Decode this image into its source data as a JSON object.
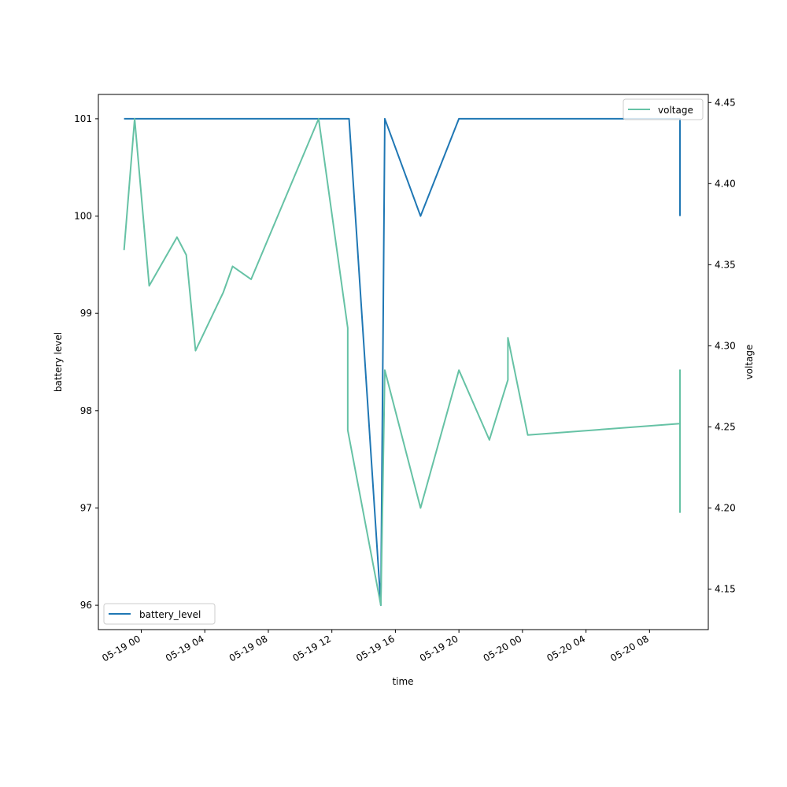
{
  "chart_data": {
    "type": "line",
    "title": "",
    "xlabel": "time",
    "ylabel": "battery level",
    "ylabel_right": "voltage",
    "x_tick_labels": [
      "05-19 00",
      "05-19 04",
      "05-19 08",
      "05-19 12",
      "05-19 16",
      "05-19 20",
      "05-20 00",
      "05-20 04",
      "05-20 08"
    ],
    "x_tick_hours": [
      0,
      4,
      8,
      12,
      16,
      20,
      24,
      28,
      32
    ],
    "xlim_hours": [
      -2.7,
      35.7
    ],
    "y_left_ticks": [
      96,
      97,
      98,
      99,
      100,
      101
    ],
    "y_left_tick_labels": [
      "96",
      "97",
      "98",
      "99",
      "100",
      "101"
    ],
    "ylim_left": [
      95.75,
      101.25
    ],
    "y_right_ticks": [
      4.15,
      4.2,
      4.25,
      4.3,
      4.35,
      4.4,
      4.45
    ],
    "y_right_tick_labels": [
      "4.15",
      "4.20",
      "4.25",
      "4.30",
      "4.35",
      "4.40",
      "4.45"
    ],
    "ylim_right": [
      4.125,
      4.455
    ],
    "grid": false,
    "series": [
      {
        "name": "battery_level",
        "axis": "left",
        "color": "#1f77b4",
        "legend_position": "lower-left",
        "points": [
          {
            "x": "05-18 22:55",
            "y": 101
          },
          {
            "x": "05-19 13:05",
            "y": 101
          },
          {
            "x": "05-19 15:05",
            "y": 96
          },
          {
            "x": "05-19 15:20",
            "y": 101
          },
          {
            "x": "05-19 17:35",
            "y": 100
          },
          {
            "x": "05-19 20:00",
            "y": 101
          },
          {
            "x": "05-20 09:55",
            "y": 101
          },
          {
            "x": "05-20 09:55",
            "y": 100
          }
        ]
      },
      {
        "name": "voltage",
        "axis": "right",
        "color": "#66c2a5",
        "legend_position": "top-right",
        "points": [
          {
            "x": "05-18 22:55",
            "y": 4.359
          },
          {
            "x": "05-18 23:35",
            "y": 4.44
          },
          {
            "x": "05-19 00:30",
            "y": 4.337
          },
          {
            "x": "05-19 02:15",
            "y": 4.367
          },
          {
            "x": "05-19 02:50",
            "y": 4.356
          },
          {
            "x": "05-19 03:25",
            "y": 4.297
          },
          {
            "x": "05-19 05:10",
            "y": 4.333
          },
          {
            "x": "05-19 05:45",
            "y": 4.349
          },
          {
            "x": "05-19 06:55",
            "y": 4.341
          },
          {
            "x": "05-19 11:10",
            "y": 4.44
          },
          {
            "x": "05-19 13:00",
            "y": 4.311
          },
          {
            "x": "05-19 13:00",
            "y": 4.248
          },
          {
            "x": "05-19 15:05",
            "y": 4.14
          },
          {
            "x": "05-19 15:20",
            "y": 4.285
          },
          {
            "x": "05-19 17:35",
            "y": 4.2
          },
          {
            "x": "05-19 20:00",
            "y": 4.285
          },
          {
            "x": "05-19 21:55",
            "y": 4.242
          },
          {
            "x": "05-19 23:05",
            "y": 4.279
          },
          {
            "x": "05-19 23:05",
            "y": 4.305
          },
          {
            "x": "05-20 00:20",
            "y": 4.245
          },
          {
            "x": "05-20 09:55",
            "y": 4.252
          },
          {
            "x": "05-20 09:55",
            "y": 4.285
          },
          {
            "x": "05-20 09:55",
            "y": 4.197
          }
        ]
      }
    ]
  }
}
